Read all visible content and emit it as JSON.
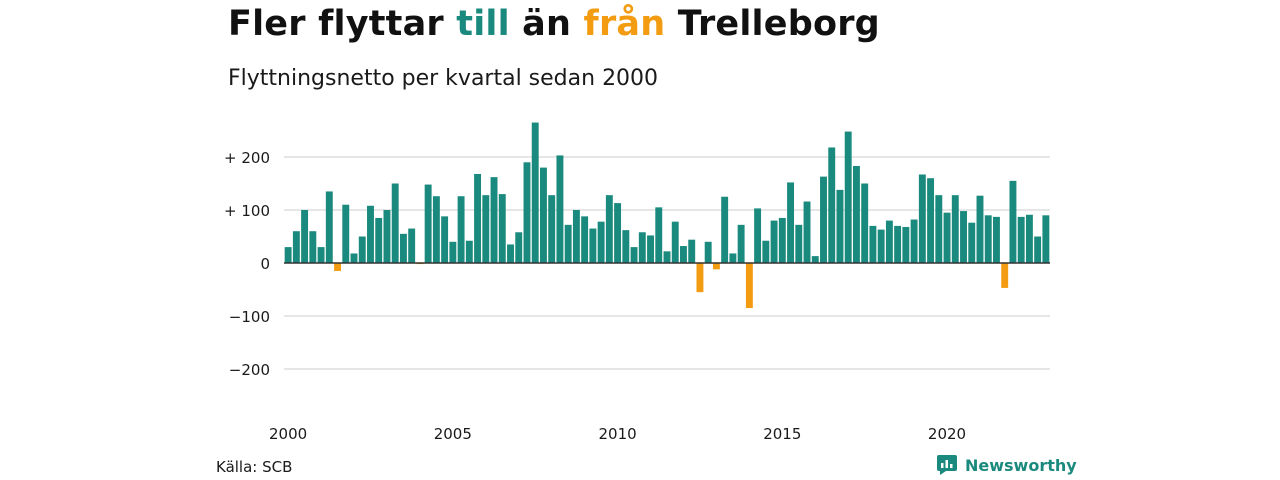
{
  "title": {
    "part1": "Fler flyttar ",
    "highlight1": "till",
    "part2": " än ",
    "highlight2": "från",
    "part3": " Trelleborg"
  },
  "subtitle": "Flyttningsnetto per kvartal sedan 2000",
  "source": "Källa: SCB",
  "brand": "Newsworthy",
  "colors": {
    "positive": "#1b8a7e",
    "negative": "#f39c12",
    "grid": "#dddddd",
    "zero": "#333333"
  },
  "chart_data": {
    "type": "bar",
    "start_year": 2000,
    "quarters_per_year": 4,
    "values": [
      30,
      60,
      100,
      60,
      30,
      135,
      -15,
      110,
      18,
      50,
      108,
      85,
      100,
      150,
      55,
      65,
      -2,
      148,
      126,
      88,
      40,
      126,
      42,
      168,
      128,
      162,
      130,
      35,
      58,
      190,
      265,
      180,
      128,
      203,
      72,
      100,
      88,
      65,
      78,
      128,
      113,
      62,
      30,
      58,
      52,
      105,
      22,
      78,
      32,
      44,
      -55,
      40,
      -12,
      125,
      18,
      72,
      -85,
      103,
      42,
      80,
      85,
      152,
      72,
      116,
      13,
      163,
      218,
      138,
      248,
      183,
      150,
      70,
      63,
      80,
      70,
      68,
      82,
      167,
      160,
      128,
      95,
      128,
      98,
      76,
      127,
      90,
      87,
      -47,
      155,
      87,
      91,
      50,
      90
    ],
    "y_ticks": [
      200,
      100,
      0,
      -100,
      -200
    ],
    "y_tick_labels": [
      "+ 200",
      "+ 100",
      "0",
      "−100",
      "−200"
    ],
    "x_ticks": [
      2000,
      2005,
      2010,
      2015,
      2020
    ],
    "x_tick_labels": [
      "2000",
      "2005",
      "2010",
      "2015",
      "2020"
    ],
    "ylim": [
      -200,
      265
    ],
    "grid": true
  }
}
